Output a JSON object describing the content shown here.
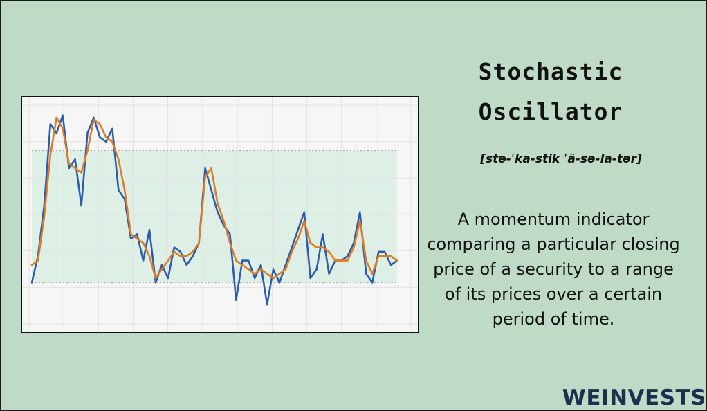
{
  "title": "Stochastic Oscillator",
  "pronunciation": "[stə-ˈka-stik ˈä-sə-la-tər]",
  "description": "A momentum indicator comparing a particular closing price of a security to a range of its prices over a certain period of time.",
  "brand": "WEINVESTS",
  "colors": {
    "background": "#bfdbc8",
    "plot_bg": "#f6f6f6",
    "band_fill": "#d9efe3",
    "fast_line": "#2a5db0",
    "slow_line": "#e07b22",
    "brand": "#1d2f4e"
  },
  "chart_data": {
    "type": "line",
    "title": "",
    "xlabel": "",
    "ylabel": "",
    "xlim": [
      0,
      59
    ],
    "ylim": [
      0,
      100
    ],
    "grid": true,
    "band": [
      20,
      80
    ],
    "series": [
      {
        "values": [
          20,
          32,
          55,
          92,
          88,
          96,
          72,
          76,
          55,
          88,
          95,
          86,
          84,
          90,
          62,
          58,
          40,
          42,
          30,
          44,
          20,
          28,
          22,
          36,
          34,
          28,
          32,
          38,
          72,
          62,
          52,
          46,
          42,
          12,
          30,
          30,
          22,
          28,
          10,
          26,
          20,
          28,
          36,
          44,
          52,
          22,
          26,
          42,
          24,
          30,
          30,
          32,
          38,
          52,
          24,
          20,
          34,
          34,
          28,
          30
        ]
      },
      {
        "values": [
          28,
          30,
          50,
          78,
          95,
          90,
          74,
          72,
          70,
          80,
          94,
          92,
          86,
          84,
          76,
          62,
          42,
          40,
          38,
          32,
          22,
          26,
          30,
          34,
          32,
          32,
          34,
          38,
          68,
          72,
          56,
          48,
          38,
          30,
          28,
          26,
          24,
          26,
          24,
          22,
          24,
          26,
          34,
          40,
          48,
          38,
          36,
          36,
          34,
          30,
          30,
          30,
          36,
          48,
          30,
          24,
          32,
          32,
          32,
          30
        ]
      }
    ]
  }
}
